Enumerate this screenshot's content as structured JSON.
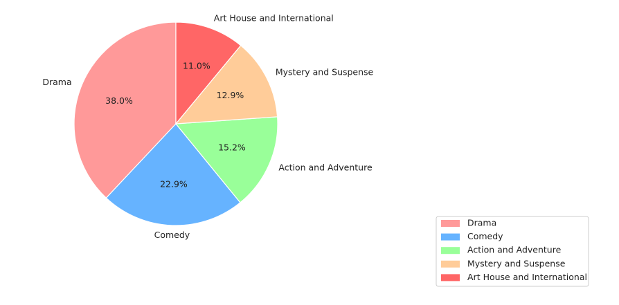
{
  "chart_data": {
    "type": "pie",
    "title": "",
    "categories": [
      "Drama",
      "Comedy",
      "Action and Adventure",
      "Mystery and Suspense",
      "Art House and International"
    ],
    "values": [
      38.0,
      22.9,
      15.2,
      12.9,
      11.0
    ],
    "value_labels": [
      "38.0%",
      "22.9%",
      "15.2%",
      "12.9%",
      "11.0%"
    ],
    "colors": [
      "#ff9999",
      "#66b3ff",
      "#99ff99",
      "#ffcc99",
      "#ff6666"
    ],
    "start_angle_deg": 90,
    "direction": "counterclockwise",
    "legend": {
      "position": "lower-right",
      "entries": [
        "Drama",
        "Comedy",
        "Action and Adventure",
        "Mystery and Suspense",
        "Art House and International"
      ]
    }
  }
}
